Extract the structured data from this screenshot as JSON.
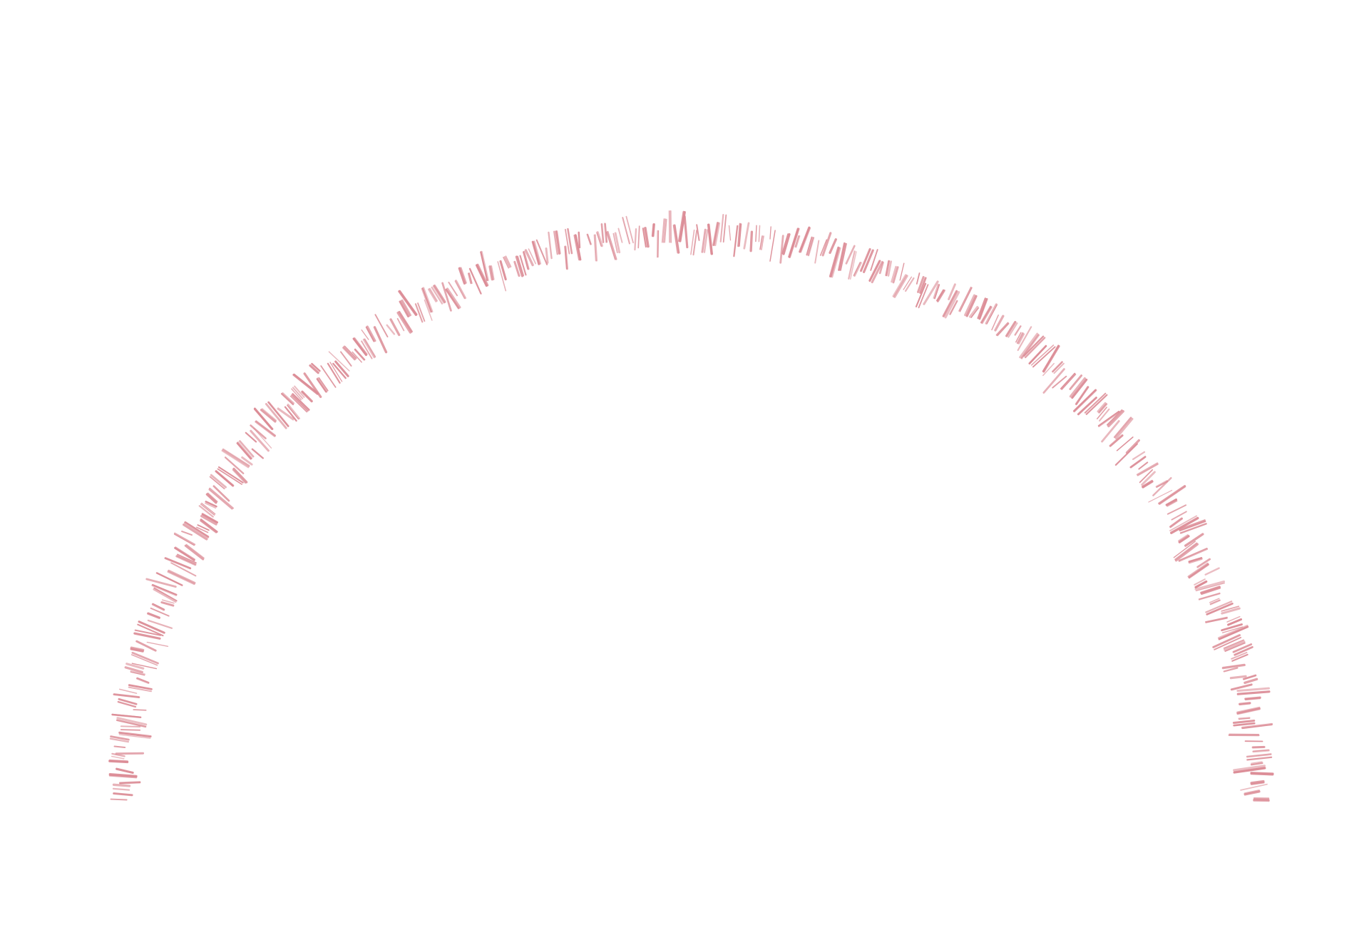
{
  "image": {
    "subject": "hatched-arch",
    "background_color": "#ffffff",
    "stroke_color": "#dc8c96"
  }
}
